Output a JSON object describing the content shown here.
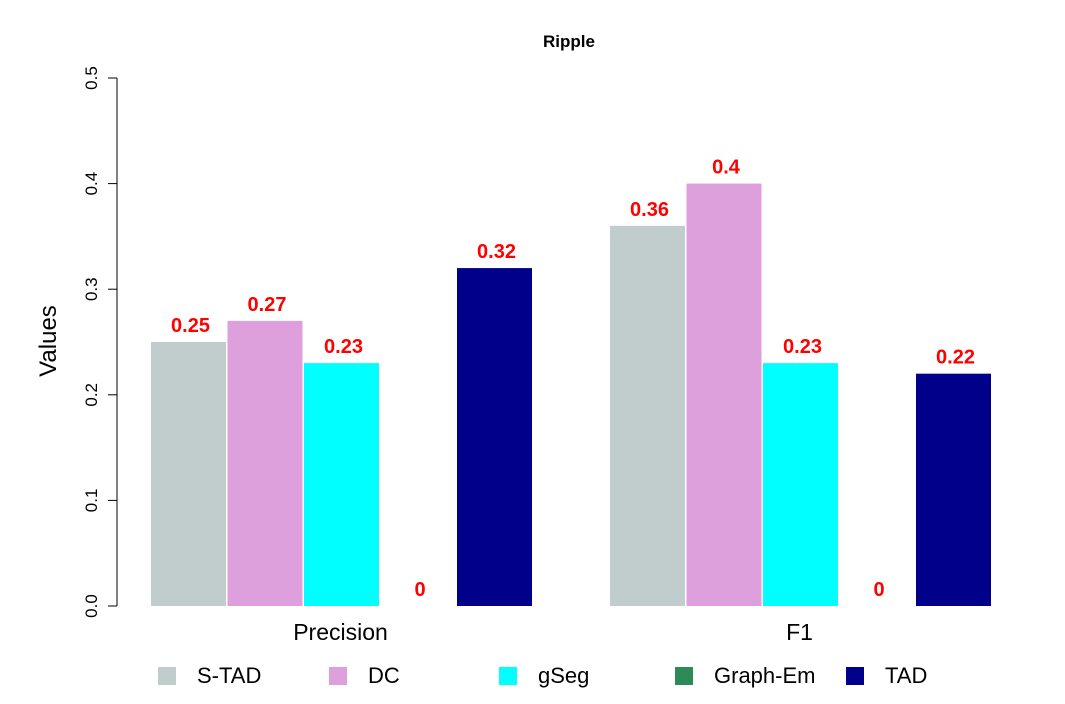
{
  "chart_data": {
    "type": "bar",
    "title": "Ripple",
    "xlabel": "",
    "ylabel": "Values",
    "ylim": [
      0,
      0.5
    ],
    "yticks": [
      "0.0",
      "0.1",
      "0.2",
      "0.3",
      "0.4",
      "0.5"
    ],
    "categories": [
      "Precision",
      "F1"
    ],
    "series": [
      {
        "name": "S-TAD",
        "color": "#c1cdcd",
        "values": [
          0.25,
          0.36
        ],
        "labels": [
          "0.25",
          "0.36"
        ]
      },
      {
        "name": "DC",
        "color": "#dda0dd",
        "values": [
          0.27,
          0.4
        ],
        "labels": [
          "0.27",
          "0.4"
        ]
      },
      {
        "name": "gSeg",
        "color": "#00ffff",
        "values": [
          0.23,
          0.23
        ],
        "labels": [
          "0.23",
          "0.23"
        ]
      },
      {
        "name": "Graph-Em",
        "color": "#2e8b57",
        "values": [
          0,
          0
        ],
        "labels": [
          "0",
          "0"
        ]
      },
      {
        "name": "TAD",
        "color": "#00008b",
        "values": [
          0.32,
          0.22
        ],
        "labels": [
          "0.32",
          "0.22"
        ]
      }
    ],
    "value_label_color": "#ff0000",
    "grid": false,
    "legend": "bottom"
  }
}
